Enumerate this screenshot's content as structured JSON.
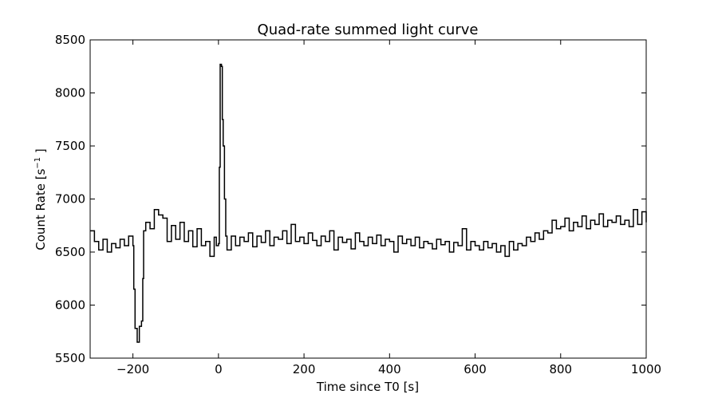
{
  "chart_data": {
    "type": "line",
    "title": "Quad-rate summed light curve",
    "xlabel": "Time since T0 [s]",
    "ylabel": {
      "prefix": "Count Rate [s",
      "sup": "−1",
      "suffix": " ]"
    },
    "xlim": [
      -300,
      1000
    ],
    "ylim": [
      5500,
      8500
    ],
    "xticks": [
      -200,
      0,
      200,
      400,
      600,
      800,
      1000
    ],
    "xtick_labels": [
      "−200",
      "0",
      "200",
      "400",
      "600",
      "800",
      "1000"
    ],
    "yticks": [
      5500,
      6000,
      6500,
      7000,
      7500,
      8000,
      8500
    ],
    "ytick_labels": [
      "5500",
      "6000",
      "6500",
      "7000",
      "7500",
      "8000",
      "8500"
    ],
    "grid": false,
    "line_color": "#000000",
    "series": [
      {
        "name": "light curve",
        "drawstyle": "steps",
        "points": [
          [
            -300,
            6700
          ],
          [
            -290,
            6600
          ],
          [
            -280,
            6520
          ],
          [
            -270,
            6620
          ],
          [
            -260,
            6500
          ],
          [
            -250,
            6580
          ],
          [
            -240,
            6540
          ],
          [
            -230,
            6620
          ],
          [
            -220,
            6560
          ],
          [
            -210,
            6650
          ],
          [
            -200,
            6560
          ],
          [
            -198,
            6150
          ],
          [
            -195,
            5780
          ],
          [
            -190,
            5650
          ],
          [
            -185,
            5800
          ],
          [
            -180,
            5850
          ],
          [
            -177,
            6250
          ],
          [
            -175,
            6700
          ],
          [
            -170,
            6780
          ],
          [
            -160,
            6720
          ],
          [
            -150,
            6900
          ],
          [
            -140,
            6850
          ],
          [
            -130,
            6820
          ],
          [
            -120,
            6600
          ],
          [
            -110,
            6750
          ],
          [
            -100,
            6620
          ],
          [
            -90,
            6780
          ],
          [
            -80,
            6600
          ],
          [
            -70,
            6700
          ],
          [
            -60,
            6550
          ],
          [
            -50,
            6720
          ],
          [
            -40,
            6560
          ],
          [
            -30,
            6600
          ],
          [
            -20,
            6460
          ],
          [
            -10,
            6640
          ],
          [
            -5,
            6560
          ],
          [
            0,
            6580
          ],
          [
            2,
            7300
          ],
          [
            4,
            8270
          ],
          [
            7,
            8250
          ],
          [
            9,
            7750
          ],
          [
            11,
            7500
          ],
          [
            14,
            7000
          ],
          [
            17,
            6650
          ],
          [
            20,
            6520
          ],
          [
            30,
            6650
          ],
          [
            40,
            6560
          ],
          [
            50,
            6640
          ],
          [
            60,
            6600
          ],
          [
            70,
            6680
          ],
          [
            80,
            6550
          ],
          [
            90,
            6650
          ],
          [
            100,
            6590
          ],
          [
            110,
            6700
          ],
          [
            120,
            6560
          ],
          [
            130,
            6640
          ],
          [
            140,
            6620
          ],
          [
            150,
            6700
          ],
          [
            160,
            6580
          ],
          [
            170,
            6760
          ],
          [
            180,
            6600
          ],
          [
            190,
            6640
          ],
          [
            200,
            6580
          ],
          [
            210,
            6680
          ],
          [
            220,
            6610
          ],
          [
            230,
            6560
          ],
          [
            240,
            6650
          ],
          [
            250,
            6600
          ],
          [
            260,
            6700
          ],
          [
            270,
            6520
          ],
          [
            280,
            6640
          ],
          [
            290,
            6590
          ],
          [
            300,
            6620
          ],
          [
            310,
            6530
          ],
          [
            320,
            6680
          ],
          [
            330,
            6600
          ],
          [
            340,
            6560
          ],
          [
            350,
            6640
          ],
          [
            360,
            6580
          ],
          [
            370,
            6660
          ],
          [
            380,
            6560
          ],
          [
            390,
            6620
          ],
          [
            400,
            6600
          ],
          [
            410,
            6500
          ],
          [
            420,
            6650
          ],
          [
            430,
            6580
          ],
          [
            440,
            6620
          ],
          [
            450,
            6560
          ],
          [
            460,
            6640
          ],
          [
            470,
            6540
          ],
          [
            480,
            6600
          ],
          [
            490,
            6580
          ],
          [
            500,
            6530
          ],
          [
            510,
            6620
          ],
          [
            520,
            6570
          ],
          [
            530,
            6600
          ],
          [
            540,
            6500
          ],
          [
            550,
            6590
          ],
          [
            560,
            6560
          ],
          [
            570,
            6720
          ],
          [
            580,
            6520
          ],
          [
            590,
            6600
          ],
          [
            600,
            6560
          ],
          [
            610,
            6520
          ],
          [
            620,
            6600
          ],
          [
            630,
            6540
          ],
          [
            640,
            6580
          ],
          [
            650,
            6500
          ],
          [
            660,
            6560
          ],
          [
            670,
            6460
          ],
          [
            680,
            6600
          ],
          [
            690,
            6520
          ],
          [
            700,
            6580
          ],
          [
            710,
            6560
          ],
          [
            720,
            6640
          ],
          [
            730,
            6600
          ],
          [
            740,
            6680
          ],
          [
            750,
            6620
          ],
          [
            760,
            6700
          ],
          [
            770,
            6680
          ],
          [
            780,
            6800
          ],
          [
            790,
            6720
          ],
          [
            800,
            6740
          ],
          [
            810,
            6820
          ],
          [
            820,
            6700
          ],
          [
            830,
            6780
          ],
          [
            840,
            6740
          ],
          [
            850,
            6840
          ],
          [
            860,
            6720
          ],
          [
            870,
            6800
          ],
          [
            880,
            6760
          ],
          [
            890,
            6860
          ],
          [
            900,
            6740
          ],
          [
            910,
            6800
          ],
          [
            920,
            6780
          ],
          [
            930,
            6840
          ],
          [
            940,
            6760
          ],
          [
            950,
            6800
          ],
          [
            960,
            6740
          ],
          [
            970,
            6900
          ],
          [
            980,
            6760
          ],
          [
            990,
            6880
          ],
          [
            1000,
            6780
          ]
        ]
      }
    ]
  }
}
